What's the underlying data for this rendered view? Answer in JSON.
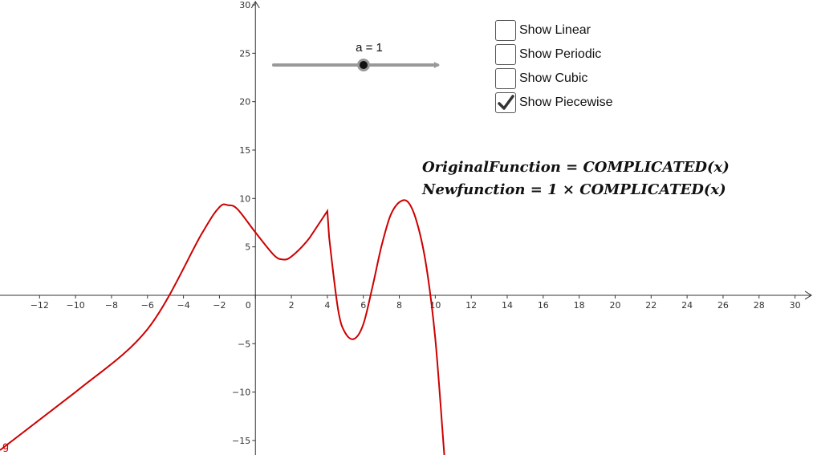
{
  "slider": {
    "label": "a = 1",
    "value": 1
  },
  "checkboxes": [
    {
      "label": "Show Linear",
      "checked": false
    },
    {
      "label": "Show Periodic",
      "checked": false
    },
    {
      "label": "Show Cubic",
      "checked": false
    },
    {
      "label": "Show Piecewise",
      "checked": true
    }
  ],
  "formulas": {
    "original": "OriginalFunction = COMPLICATED(x)",
    "new": "Newfunction = 1 × COMPLICATED(x)"
  },
  "colors": {
    "curve": "#cc0000",
    "axis": "#333333",
    "slider": "#999999"
  },
  "chart_data": {
    "type": "line",
    "x_ticks": [
      -12,
      -10,
      -8,
      -6,
      -4,
      -2,
      0,
      2,
      4,
      6,
      8,
      10,
      12,
      14,
      16,
      18,
      20,
      22,
      24,
      26,
      28,
      30
    ],
    "y_ticks": [
      -15,
      -10,
      -5,
      5,
      10,
      15,
      20,
      25,
      30
    ],
    "xlim": [
      -14.2,
      31
    ],
    "ylim": [
      -16.5,
      30.5
    ],
    "grid": false,
    "series": [
      {
        "name": "g",
        "x": [
          -14.2,
          -10,
          -6,
          -3,
          -2,
          -1.5,
          -1,
          0,
          1,
          1.5,
          2,
          3,
          4,
          4.1,
          4.6,
          5,
          5.5,
          6,
          6.5,
          7,
          7.5,
          8,
          8.5,
          9,
          9.5,
          10,
          10.5
        ],
        "y": [
          -16,
          -10,
          -3.5,
          6.3,
          9.1,
          9.3,
          8.9,
          6.5,
          4.2,
          3.7,
          4.0,
          5.9,
          8.7,
          6.0,
          -1.5,
          -3.9,
          -4.5,
          -3.0,
          0.8,
          5.0,
          8.2,
          9.6,
          9.6,
          7.4,
          3.0,
          -4.5,
          -16.5
        ]
      }
    ]
  }
}
